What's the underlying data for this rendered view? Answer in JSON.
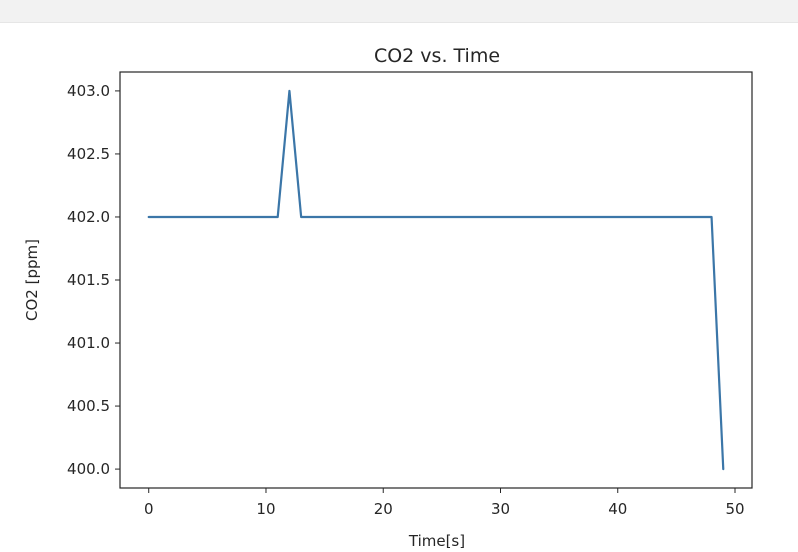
{
  "chart_data": {
    "type": "line",
    "title": "CO2 vs. Time",
    "xlabel": "Time[s]",
    "ylabel": "CO2 [ppm]",
    "xlim": [
      -2.45,
      51.45
    ],
    "ylim": [
      399.85,
      403.15
    ],
    "x_ticks": [
      0,
      10,
      20,
      30,
      40,
      50
    ],
    "y_ticks": [
      400.0,
      400.5,
      401.0,
      401.5,
      402.0,
      402.5,
      403.0
    ],
    "grid": false,
    "series": [
      {
        "color": "#3b76a8",
        "x": [
          0,
          1,
          2,
          3,
          4,
          5,
          6,
          7,
          8,
          9,
          10,
          11,
          12,
          13,
          14,
          15,
          16,
          17,
          18,
          19,
          20,
          21,
          22,
          23,
          24,
          25,
          26,
          27,
          28,
          29,
          30,
          31,
          32,
          33,
          34,
          35,
          36,
          37,
          38,
          39,
          40,
          41,
          42,
          43,
          44,
          45,
          46,
          47,
          48,
          49
        ],
        "values": [
          402,
          402,
          402,
          402,
          402,
          402,
          402,
          402,
          402,
          402,
          402,
          402,
          403,
          402,
          402,
          402,
          402,
          402,
          402,
          402,
          402,
          402,
          402,
          402,
          402,
          402,
          402,
          402,
          402,
          402,
          402,
          402,
          402,
          402,
          402,
          402,
          402,
          402,
          402,
          402,
          402,
          402,
          402,
          402,
          402,
          402,
          402,
          402,
          402,
          400
        ]
      }
    ]
  }
}
